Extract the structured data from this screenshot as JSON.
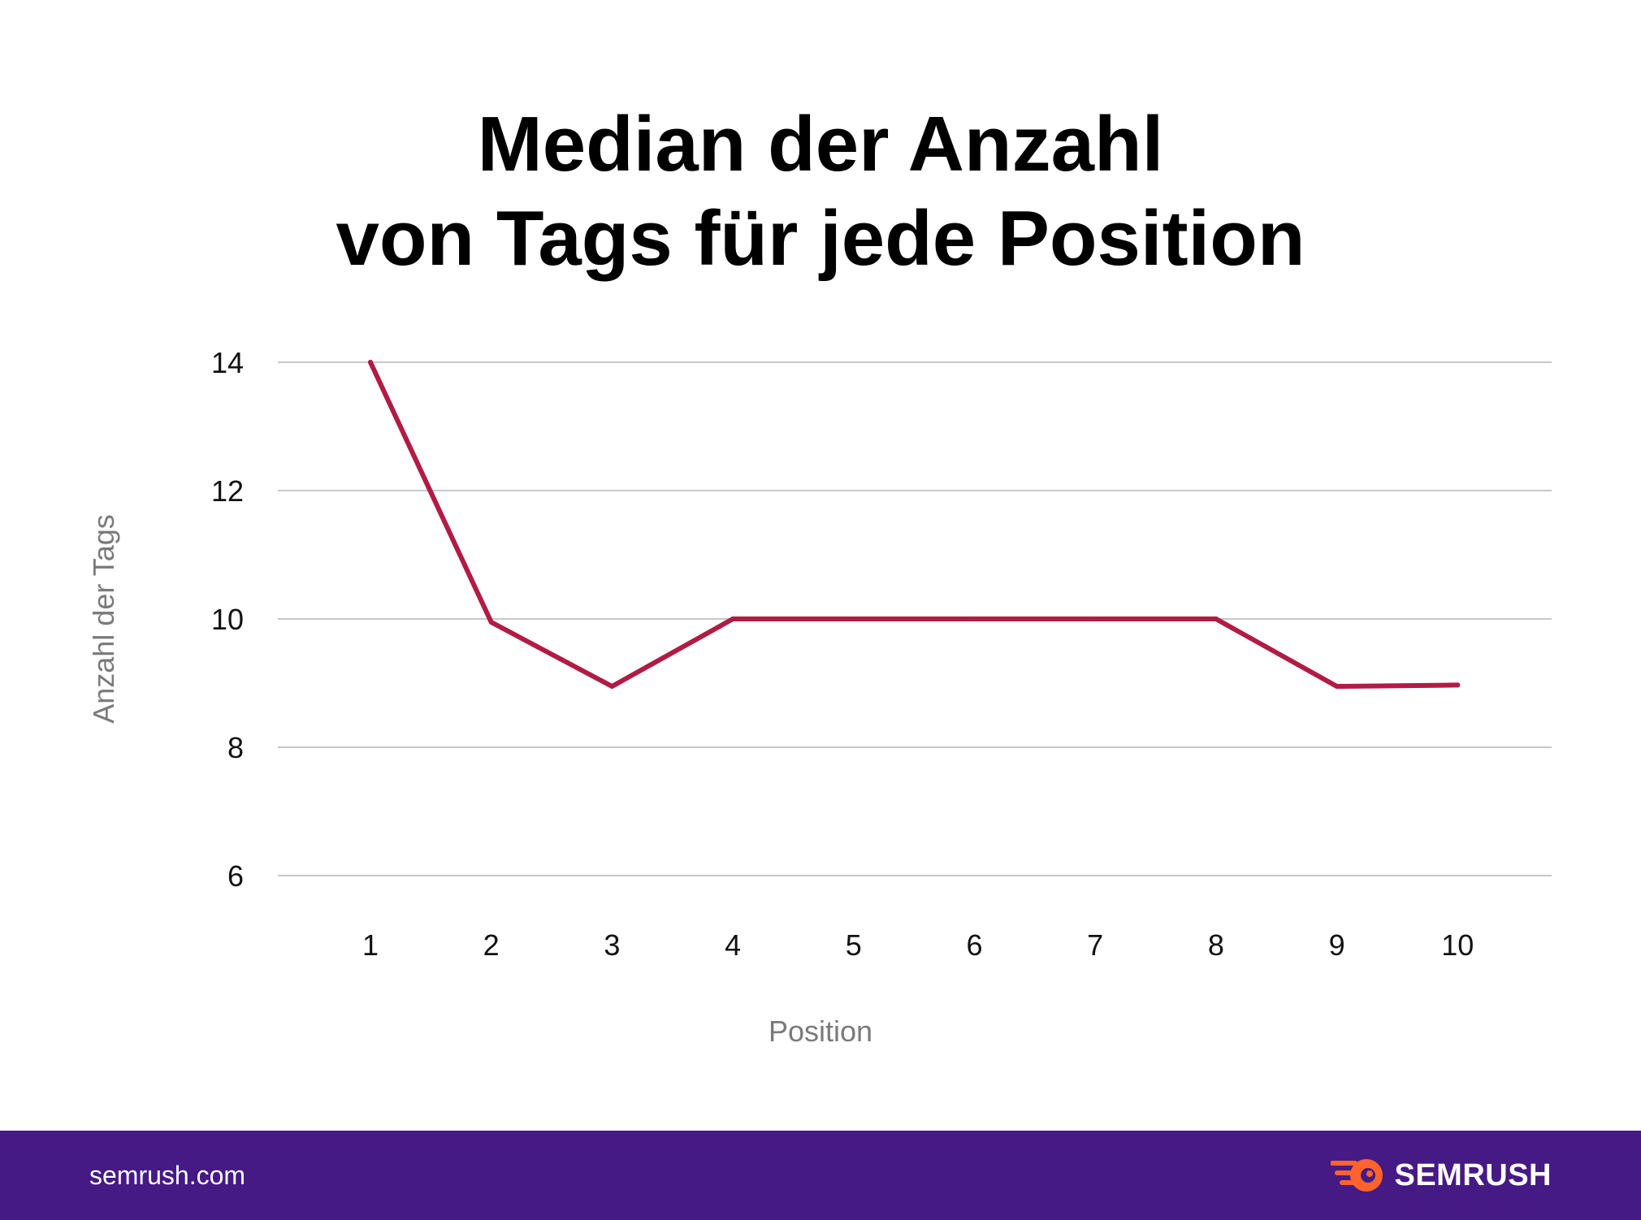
{
  "chart_data": {
    "type": "line",
    "title": "Median der Anzahl von Tags für jede Position",
    "title_lines": [
      "Median der Anzahl",
      "von Tags für jede Position"
    ],
    "xlabel": "Position",
    "ylabel": "Anzahl der Tags",
    "x": [
      "1",
      "2",
      "3",
      "4",
      "5",
      "6",
      "7",
      "8",
      "9",
      "10"
    ],
    "series": [
      {
        "values": [
          14,
          9.95,
          8.95,
          10,
          10,
          10,
          10,
          10,
          8.95,
          8.97
        ],
        "color": "#b01c45"
      }
    ],
    "yticks": [
      "6",
      "8",
      "10",
      "12",
      "14"
    ],
    "ylim": [
      6,
      14
    ],
    "grid": true,
    "legend": "none"
  },
  "footer": {
    "site": "semrush.com",
    "brand": "SEMRUSH",
    "brand_icon": "semrush-fireball-icon",
    "background": "#451a85"
  }
}
